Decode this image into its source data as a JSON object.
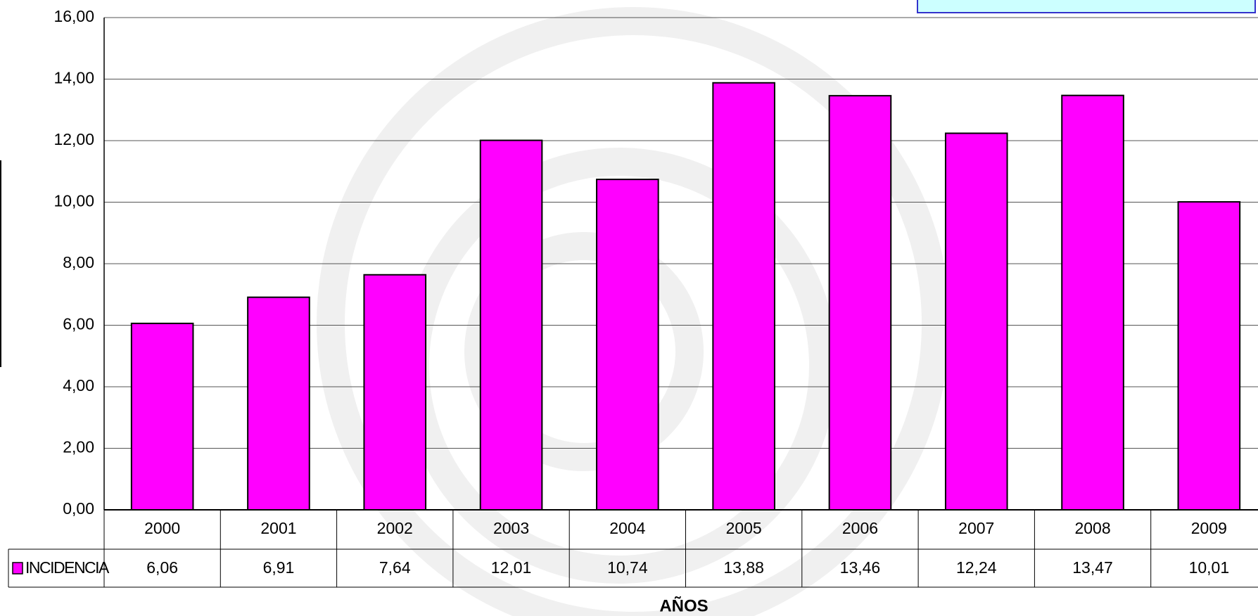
{
  "chart_data": {
    "type": "bar",
    "categories": [
      "2000",
      "2001",
      "2002",
      "2003",
      "2004",
      "2005",
      "2006",
      "2007",
      "2008",
      "2009"
    ],
    "series": [
      {
        "name": "INCIDENCIA",
        "color": "#ff00ff",
        "values": [
          6.06,
          6.91,
          7.64,
          12.01,
          10.74,
          13.88,
          13.46,
          12.24,
          13.47,
          10.01
        ],
        "value_labels": [
          "6,06",
          "6,91",
          "7,64",
          "12,01",
          "10,74",
          "13,88",
          "13,46",
          "12,24",
          "13,47",
          "10,01"
        ]
      }
    ],
    "x_label": "AÑOS",
    "ylim": [
      0,
      16
    ],
    "yticks": [
      {
        "value": 0,
        "label": "0,00"
      },
      {
        "value": 2,
        "label": "2,00"
      },
      {
        "value": 4,
        "label": "4,00"
      },
      {
        "value": 6,
        "label": "6,00"
      },
      {
        "value": 8,
        "label": "8,00"
      },
      {
        "value": 10,
        "label": "10,00"
      },
      {
        "value": 12,
        "label": "12,00"
      },
      {
        "value": 14,
        "label": "14,00"
      },
      {
        "value": 16,
        "label": "16,00"
      }
    ],
    "grid": true
  }
}
